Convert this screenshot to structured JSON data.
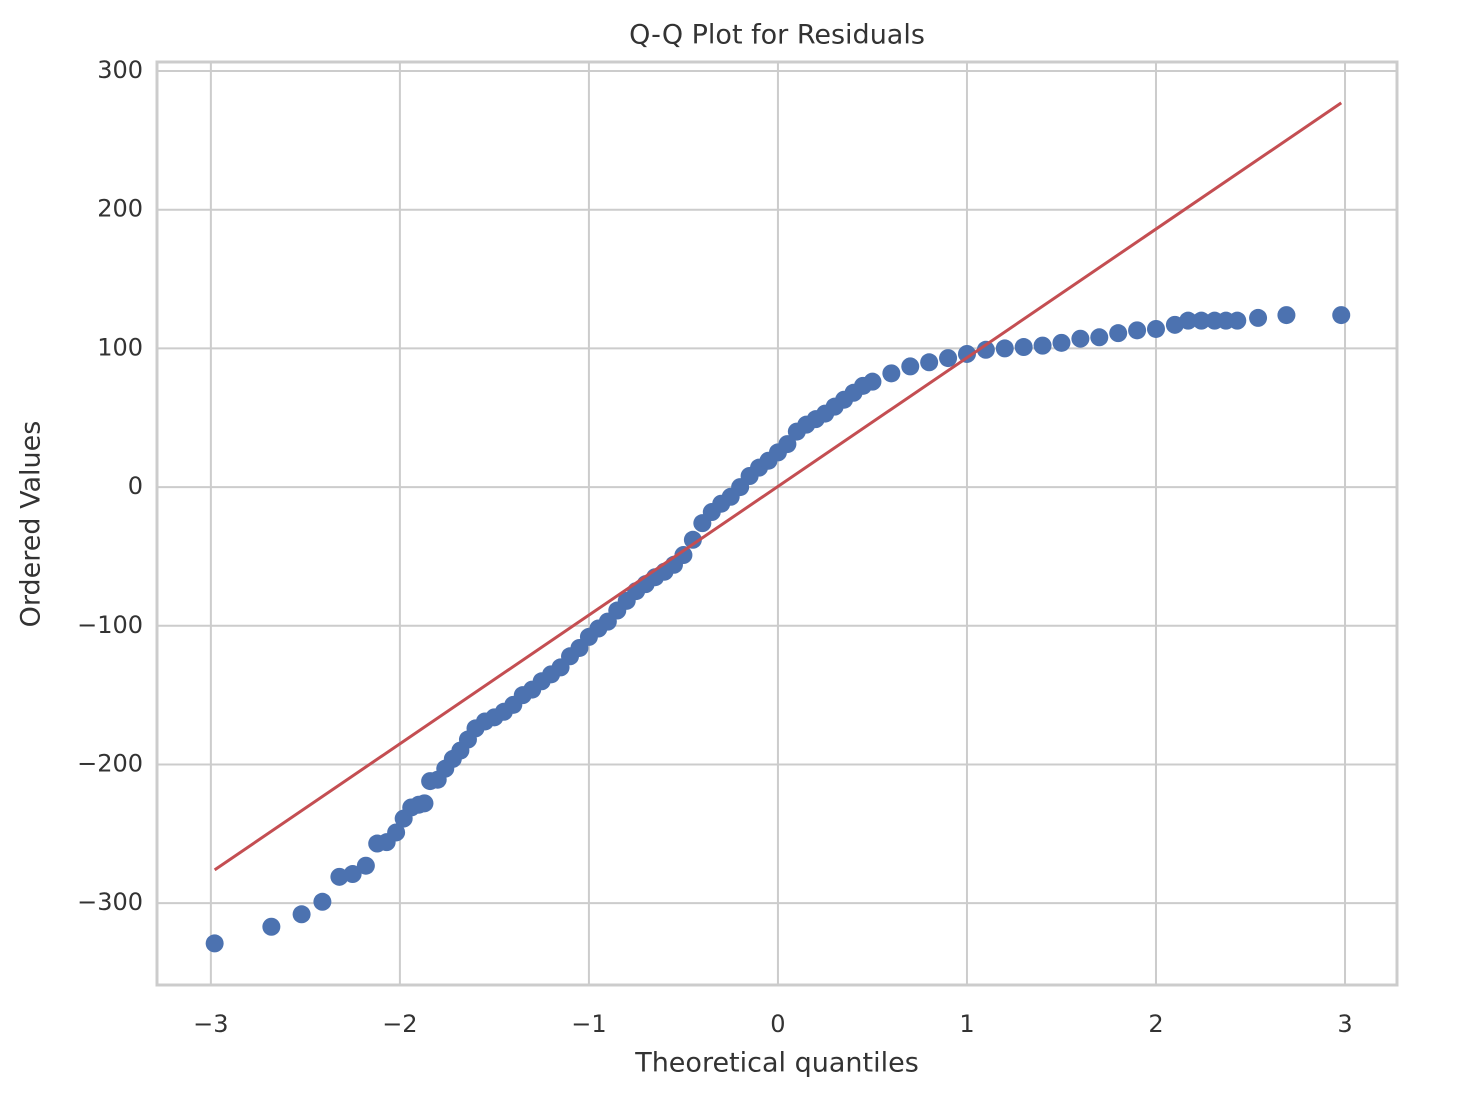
{
  "chart_data": {
    "type": "scatter",
    "title": "Q-Q Plot for Residuals",
    "x_label": "Theoretical quantiles",
    "y_label": "Ordered Values",
    "xlim": [
      -3.285,
      3.275
    ],
    "ylim": [
      -359,
      306.5
    ],
    "xticks": [
      {
        "value": -3,
        "label": "−3"
      },
      {
        "value": -2,
        "label": "−2"
      },
      {
        "value": -1,
        "label": "−1"
      },
      0,
      1,
      2,
      3
    ],
    "yticks": [
      {
        "value": -300,
        "label": "−300"
      },
      {
        "value": -200,
        "label": "−200"
      },
      {
        "value": -100,
        "label": "−100"
      },
      0,
      100,
      200,
      300
    ],
    "grid": true,
    "series": [
      {
        "type": "scatter",
        "color": "#4c72b0",
        "x": [
          -2.98,
          -2.68,
          -2.52,
          -2.41,
          -2.32,
          -2.25,
          -2.18,
          -2.12,
          -2.07,
          -2.02,
          -1.98,
          -1.94,
          -1.9,
          -1.87,
          -1.84,
          -1.8,
          -1.76,
          -1.72,
          -1.68,
          -1.64,
          -1.6,
          -1.55,
          -1.5,
          -1.45,
          -1.4,
          -1.35,
          -1.3,
          -1.25,
          -1.2,
          -1.15,
          -1.1,
          -1.05,
          -1.0,
          -0.95,
          -0.9,
          -0.85,
          -0.8,
          -0.75,
          -0.7,
          -0.65,
          -0.6,
          -0.55,
          -0.5,
          -0.45,
          -0.4,
          -0.35,
          -0.3,
          -0.25,
          -0.2,
          -0.15,
          -0.1,
          -0.05,
          0,
          0.05,
          0.1,
          0.15,
          0.2,
          0.25,
          0.3,
          0.35,
          0.4,
          0.45,
          0.5,
          0.6,
          0.7,
          0.8,
          0.9,
          1.0,
          1.1,
          1.2,
          1.3,
          1.4,
          1.5,
          1.6,
          1.7,
          1.8,
          1.9,
          2.0,
          2.1,
          2.17,
          2.24,
          2.31,
          2.37,
          2.43,
          2.54,
          2.69,
          2.98
        ],
        "values": [
          -329,
          -317,
          -308,
          -299,
          -281,
          -279,
          -273,
          -257,
          -256,
          -249,
          -239,
          -231,
          -229,
          -228,
          -212,
          -211,
          -203,
          -196,
          -190,
          -182,
          -174,
          -169,
          -166,
          -162,
          -157,
          -150,
          -146,
          -140,
          -135,
          -130,
          -122,
          -116,
          -108,
          -102,
          -97,
          -89,
          -82,
          -75,
          -70,
          -65,
          -61,
          -56,
          -49,
          -38,
          -26,
          -18,
          -12,
          -7,
          0,
          8,
          14,
          19,
          25,
          31,
          40,
          45,
          49,
          53,
          58,
          63,
          68,
          73,
          76,
          82,
          87,
          90,
          93,
          96,
          99,
          100,
          101,
          102,
          104,
          107,
          108,
          111,
          113,
          114,
          117,
          120,
          120,
          120,
          120,
          120,
          122,
          124,
          124
        ]
      },
      {
        "type": "line",
        "color": "#c44e52",
        "x": [
          -2.98,
          2.98
        ],
        "values": [
          -276,
          277
        ]
      }
    ]
  }
}
